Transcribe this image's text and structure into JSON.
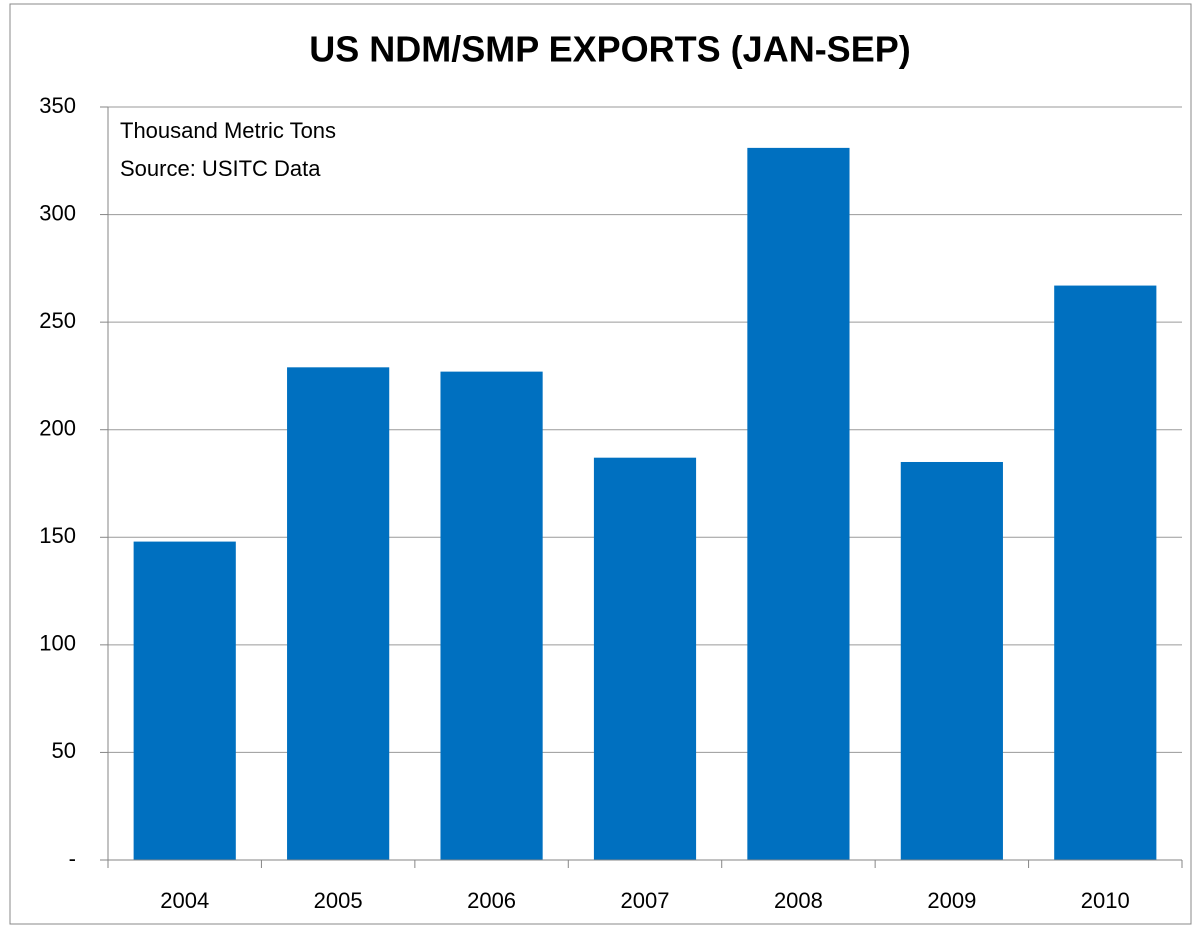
{
  "chart_data": {
    "type": "bar",
    "title": "US NDM/SMP EXPORTS (JAN-SEP)",
    "annotations": [
      "Thousand Metric Tons",
      "Source: USITC Data"
    ],
    "categories": [
      "2004",
      "2005",
      "2006",
      "2007",
      "2008",
      "2009",
      "2010"
    ],
    "values": [
      148,
      229,
      227,
      187,
      331,
      185,
      267
    ],
    "color": "#0070c0",
    "ylim": [
      0,
      350
    ],
    "yticks": [
      {
        "value": 0,
        "label": "-"
      },
      50,
      100,
      150,
      200,
      250,
      300,
      350
    ],
    "grid": true
  }
}
